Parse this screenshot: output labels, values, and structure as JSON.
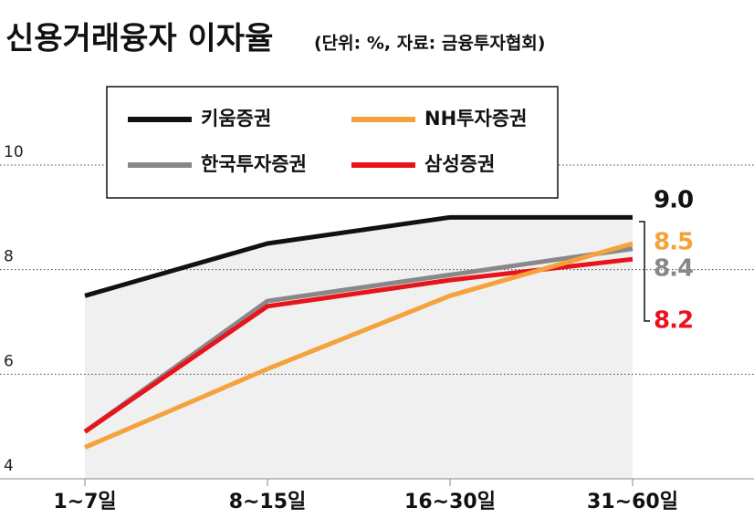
{
  "chart_data": {
    "type": "line",
    "title": "신용거래융자 이자율",
    "subtitle": "(단위: %, 자료: 금융투자협회)",
    "categories": [
      "1~7일",
      "8~15일",
      "16~30일",
      "31~60일"
    ],
    "series": [
      {
        "name": "키움증권",
        "color": "#111111",
        "values": [
          7.5,
          8.5,
          9.0,
          9.0
        ],
        "value_labels": [
          null,
          null,
          null,
          "9.0"
        ]
      },
      {
        "name": "NH투자증권",
        "color": "#f5a23c",
        "values": [
          4.6,
          6.1,
          7.5,
          8.5
        ],
        "value_labels": [
          null,
          null,
          null,
          "8.5"
        ]
      },
      {
        "name": "한국투자증권",
        "color": "#888888",
        "values": [
          4.9,
          7.4,
          7.9,
          8.4
        ],
        "value_labels": [
          null,
          null,
          null,
          "8.4"
        ]
      },
      {
        "name": "삼성증권",
        "color": "#e8141c",
        "values": [
          4.9,
          7.3,
          7.8,
          8.2
        ],
        "value_labels": [
          null,
          null,
          null,
          "8.2"
        ]
      }
    ],
    "ylim": [
      4,
      11.5
    ],
    "yticks": [
      4,
      6,
      8,
      10
    ],
    "grid": true
  }
}
